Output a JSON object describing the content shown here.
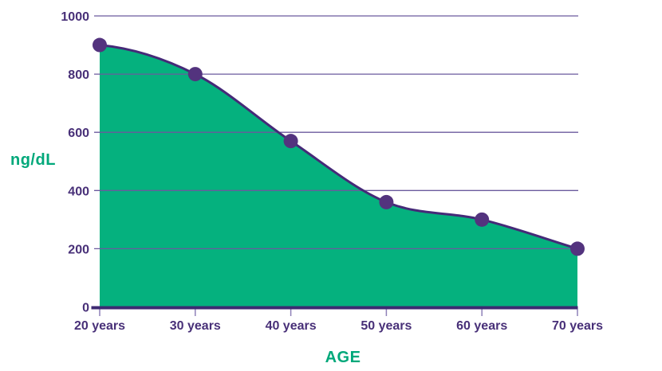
{
  "chart_data": {
    "type": "area",
    "categories": [
      "20 years",
      "30 years",
      "40 years",
      "50 years",
      "60 years",
      "70 years"
    ],
    "values": [
      900,
      800,
      570,
      360,
      300,
      200
    ],
    "xlabel": "AGE",
    "ylabel": "ng/dL",
    "y_ticks": [
      0,
      200,
      400,
      600,
      800,
      1000
    ],
    "ylim": [
      0,
      1000
    ],
    "grid": "horizontal",
    "legend": "none",
    "marker": "filled-circle",
    "curve": "smooth"
  },
  "colors": {
    "area_fill": "#05b17e",
    "line": "#452a78",
    "dot": "#53337e",
    "axis_line": "#3d2a72",
    "gridline": "#6b5a9e",
    "tick_mark": "#8e81b8",
    "tick_text": "#483078",
    "axis_title_green": "#00a87a",
    "background": "#ffffff"
  }
}
